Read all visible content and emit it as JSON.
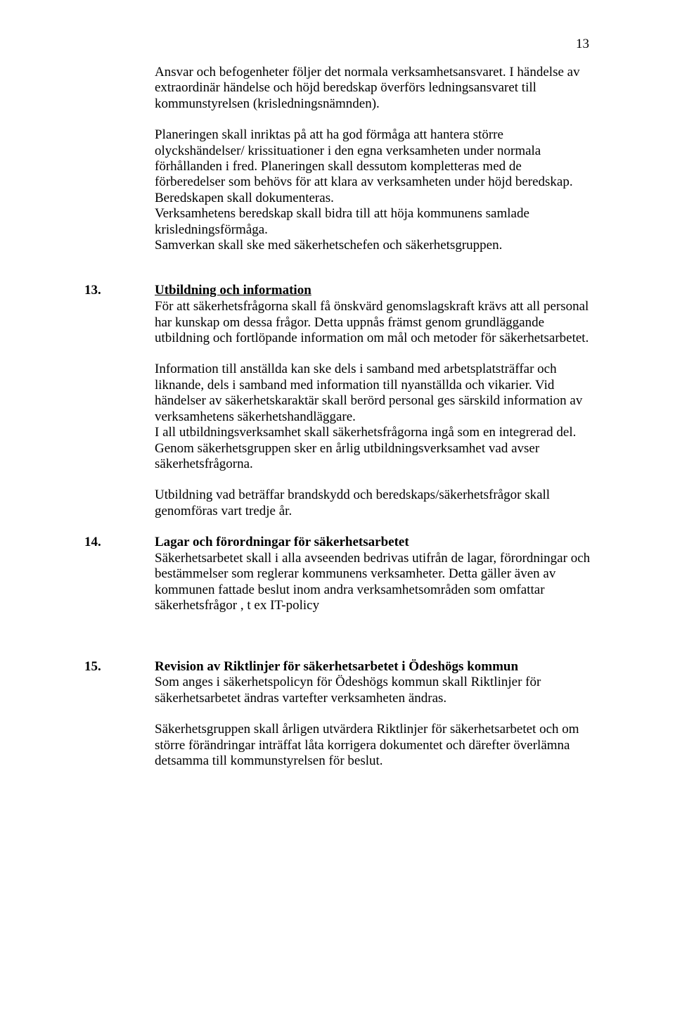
{
  "pageNumber": "13",
  "intro": {
    "p1": "Ansvar och befogenheter följer det normala verksamhetsansvaret. I händelse av extraordinär händelse och höjd beredskap överförs ledningsansvaret till kommunstyrelsen (krisledningsnämnden).",
    "p2": "Planeringen skall inriktas på att ha god förmåga att hantera större olyckshändelser/ krissituationer i den egna verksamheten under normala förhållanden i fred. Planeringen skall dessutom kompletteras med de förberedelser som behövs för att klara av verksamheten under höjd beredskap. Beredskapen skall dokumenteras.",
    "p3": "Verksamhetens beredskap skall bidra till att höja kommunens samlade krisledningsförmåga.",
    "p4": "Samverkan skall ske med säkerhetschefen och säkerhetsgruppen."
  },
  "s13": {
    "num": "13.",
    "title": "Utbildning och information",
    "p1": "För att säkerhetsfrågorna skall få önskvärd genomslagskraft krävs att all personal har kunskap om dessa frågor. Detta uppnås främst genom grundläggande utbildning och fortlöpande information om mål och metoder för säkerhetsarbetet.",
    "p2": "Information till anställda kan ske dels i samband med arbetsplatsträffar och liknande, dels i samband med information till nyanställda och vikarier. Vid händelser av säkerhetskaraktär skall berörd personal ges särskild information av verksamhetens säkerhetshandläggare.",
    "p3": "I all utbildningsverksamhet skall säkerhetsfrågorna ingå som en integrerad del. Genom säkerhetsgruppen sker en årlig utbildningsverksamhet vad avser säkerhetsfrågorna.",
    "p4": "Utbildning vad beträffar brandskydd och beredskaps/säkerhetsfrågor skall genomföras vart tredje år."
  },
  "s14": {
    "num": "14.",
    "title": "Lagar och förordningar för säkerhetsarbetet",
    "p1": "Säkerhetsarbetet skall i alla avseenden bedrivas utifrån de lagar, förordningar och bestämmelser som reglerar kommunens verksamheter. Detta gäller även av kommunen fattade beslut inom andra verksamhetsområden som omfattar säkerhetsfrågor , t ex IT-policy"
  },
  "s15": {
    "num": "15.",
    "title": "Revision av Riktlinjer för säkerhetsarbetet i Ödeshögs kommun",
    "p1": "Som anges i säkerhetspolicyn för Ödeshögs kommun skall Riktlinjer för säkerhetsarbetet ändras vartefter verksamheten ändras.",
    "p2": "Säkerhetsgruppen skall årligen utvärdera Riktlinjer för säkerhetsarbetet och om större förändringar inträffat låta korrigera dokumentet och därefter överlämna detsamma till kommunstyrelsen för beslut."
  }
}
